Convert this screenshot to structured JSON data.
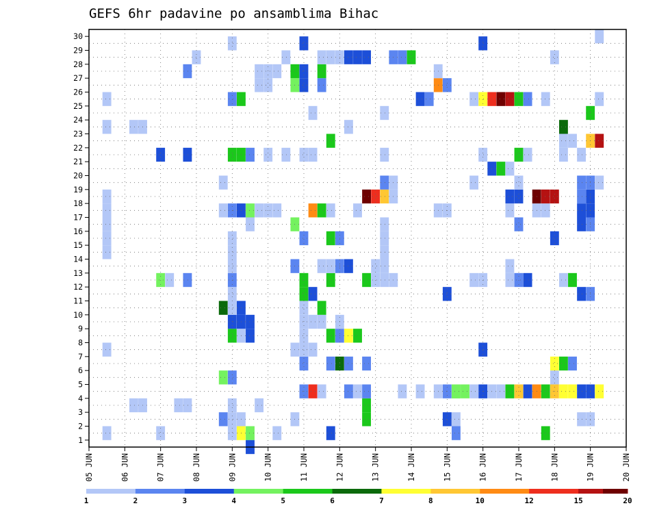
{
  "chart_data": {
    "type": "heatmap",
    "title": "GEFS 6hr padavine po ansamblima Bihac",
    "x_tick_labels": [
      "05 JUN",
      "06 JUN",
      "07 JUN",
      "08 JUN",
      "09 JUN",
      "10 JUN",
      "11 JUN",
      "12 JUN",
      "13 JUN",
      "14 JUN",
      "15 JUN",
      "16 JUN",
      "17 JUN",
      "18 JUN",
      "19 JUN",
      "20 JUN"
    ],
    "y_tick_labels": [
      "1",
      "2",
      "3",
      "4",
      "5",
      "6",
      "7",
      "8",
      "9",
      "10",
      "11",
      "12",
      "13",
      "14",
      "15",
      "16",
      "17",
      "18",
      "19",
      "20",
      "21",
      "22",
      "23",
      "24",
      "25",
      "26",
      "27",
      "28",
      "29",
      "30"
    ],
    "time_steps_per_day": 4,
    "num_time_steps": 61,
    "members": 30,
    "xlim": [
      0,
      60
    ],
    "ylim": [
      1,
      30
    ],
    "grid": "dotted",
    "colorbar": {
      "labels": [
        "1",
        "2",
        "3",
        "4",
        "5",
        "6",
        "7",
        "8",
        "10",
        "12",
        "15",
        "20"
      ],
      "colors": [
        "#b3c7f7",
        "#5b85f0",
        "#1d4fd8",
        "#74f25f",
        "#1bc81b",
        "#0b6a0b",
        "#ffff33",
        "#ffc733",
        "#ff8b14",
        "#ee2e1e",
        "#b51212",
        "#6e0000"
      ]
    },
    "cells": [
      {
        "t": 2,
        "m": 1,
        "c": 0
      },
      {
        "t": 2,
        "m": 7,
        "c": 0
      },
      {
        "t": 2,
        "m": 14,
        "c": 0
      },
      {
        "t": 2,
        "m": 15,
        "c": 0
      },
      {
        "t": 2,
        "m": 16,
        "c": 0
      },
      {
        "t": 2,
        "m": 17,
        "c": 0
      },
      {
        "t": 2,
        "m": 18,
        "c": 0
      },
      {
        "t": 2,
        "m": 23,
        "c": 0
      },
      {
        "t": 2,
        "m": 25,
        "c": 0
      },
      {
        "t": 5,
        "m": 3,
        "c": 0
      },
      {
        "t": 6,
        "m": 3,
        "c": 0
      },
      {
        "t": 5,
        "m": 23,
        "c": 0
      },
      {
        "t": 6,
        "m": 23,
        "c": 0
      },
      {
        "t": 8,
        "m": 1,
        "c": 0
      },
      {
        "t": 8,
        "m": 12,
        "c": 3
      },
      {
        "t": 9,
        "m": 12,
        "c": 0
      },
      {
        "t": 8,
        "m": 21,
        "c": 2
      },
      {
        "t": 10,
        "m": 3,
        "c": 0
      },
      {
        "t": 11,
        "m": 3,
        "c": 0
      },
      {
        "t": 11,
        "m": 12,
        "c": 1
      },
      {
        "t": 11,
        "m": 21,
        "c": 2
      },
      {
        "t": 11,
        "m": 27,
        "c": 1
      },
      {
        "t": 12,
        "m": 28,
        "c": 0
      },
      {
        "t": 15,
        "m": 10,
        "c": 5
      },
      {
        "t": 15,
        "m": 5,
        "c": 3
      },
      {
        "t": 15,
        "m": 17,
        "c": 0
      },
      {
        "t": 15,
        "m": 19,
        "c": 0
      },
      {
        "t": 15,
        "m": 2,
        "c": 1
      },
      {
        "t": 16,
        "m": 1,
        "c": 0
      },
      {
        "t": 16,
        "m": 2,
        "c": 0
      },
      {
        "t": 16,
        "m": 3,
        "c": 0
      },
      {
        "t": 16,
        "m": 5,
        "c": 1
      },
      {
        "t": 16,
        "m": 8,
        "c": 4
      },
      {
        "t": 16,
        "m": 9,
        "c": 2
      },
      {
        "t": 16,
        "m": 10,
        "c": 0
      },
      {
        "t": 16,
        "m": 11,
        "c": 0
      },
      {
        "t": 16,
        "m": 12,
        "c": 1
      },
      {
        "t": 16,
        "m": 13,
        "c": 0
      },
      {
        "t": 16,
        "m": 14,
        "c": 0
      },
      {
        "t": 16,
        "m": 15,
        "c": 0
      },
      {
        "t": 16,
        "m": 17,
        "c": 1
      },
      {
        "t": 16,
        "m": 21,
        "c": 4
      },
      {
        "t": 16,
        "m": 25,
        "c": 1
      },
      {
        "t": 16,
        "m": 29,
        "c": 0
      },
      {
        "t": 17,
        "m": 1,
        "c": 6
      },
      {
        "t": 17,
        "m": 2,
        "c": 0
      },
      {
        "t": 17,
        "m": 8,
        "c": 0
      },
      {
        "t": 17,
        "m": 9,
        "c": 2
      },
      {
        "t": 17,
        "m": 10,
        "c": 2
      },
      {
        "t": 17,
        "m": 17,
        "c": 2
      },
      {
        "t": 17,
        "m": 21,
        "c": 4
      },
      {
        "t": 17,
        "m": 25,
        "c": 4
      },
      {
        "t": 18,
        "m": 1,
        "c": 3
      },
      {
        "t": 18,
        "m": 8,
        "c": 2
      },
      {
        "t": 18,
        "m": 9,
        "c": 2
      },
      {
        "t": 18,
        "m": 0,
        "c": 2
      },
      {
        "t": 18,
        "m": 16,
        "c": 0
      },
      {
        "t": 18,
        "m": 17,
        "c": 3
      },
      {
        "t": 18,
        "m": 21,
        "c": 1
      },
      {
        "t": 19,
        "m": 3,
        "c": 0
      },
      {
        "t": 19,
        "m": 17,
        "c": 0
      },
      {
        "t": 19,
        "m": 26,
        "c": 0
      },
      {
        "t": 19,
        "m": 27,
        "c": 0
      },
      {
        "t": 20,
        "m": 17,
        "c": 0
      },
      {
        "t": 20,
        "m": 21,
        "c": 0
      },
      {
        "t": 20,
        "m": 26,
        "c": 0
      },
      {
        "t": 20,
        "m": 27,
        "c": 0
      },
      {
        "t": 21,
        "m": 1,
        "c": 0
      },
      {
        "t": 21,
        "m": 17,
        "c": 0
      },
      {
        "t": 21,
        "m": 27,
        "c": 0
      },
      {
        "t": 22,
        "m": 21,
        "c": 0
      },
      {
        "t": 22,
        "m": 28,
        "c": 0
      },
      {
        "t": 23,
        "m": 2,
        "c": 0
      },
      {
        "t": 23,
        "m": 7,
        "c": 0
      },
      {
        "t": 23,
        "m": 13,
        "c": 1
      },
      {
        "t": 23,
        "m": 16,
        "c": 3
      },
      {
        "t": 23,
        "m": 26,
        "c": 3
      },
      {
        "t": 23,
        "m": 27,
        "c": 4
      },
      {
        "t": 24,
        "m": 4,
        "c": 1
      },
      {
        "t": 24,
        "m": 6,
        "c": 1
      },
      {
        "t": 24,
        "m": 7,
        "c": 0
      },
      {
        "t": 24,
        "m": 8,
        "c": 0
      },
      {
        "t": 24,
        "m": 9,
        "c": 0
      },
      {
        "t": 24,
        "m": 10,
        "c": 0
      },
      {
        "t": 24,
        "m": 11,
        "c": 4
      },
      {
        "t": 24,
        "m": 12,
        "c": 4
      },
      {
        "t": 24,
        "m": 15,
        "c": 1
      },
      {
        "t": 24,
        "m": 21,
        "c": 0
      },
      {
        "t": 24,
        "m": 26,
        "c": 2
      },
      {
        "t": 24,
        "m": 27,
        "c": 2
      },
      {
        "t": 24,
        "m": 29,
        "c": 2
      },
      {
        "t": 25,
        "m": 4,
        "c": 9
      },
      {
        "t": 25,
        "m": 7,
        "c": 0
      },
      {
        "t": 25,
        "m": 9,
        "c": 0
      },
      {
        "t": 25,
        "m": 11,
        "c": 2
      },
      {
        "t": 25,
        "m": 17,
        "c": 8
      },
      {
        "t": 25,
        "m": 21,
        "c": 0
      },
      {
        "t": 25,
        "m": 24,
        "c": 0
      },
      {
        "t": 26,
        "m": 4,
        "c": 0
      },
      {
        "t": 26,
        "m": 9,
        "c": 0
      },
      {
        "t": 26,
        "m": 10,
        "c": 4
      },
      {
        "t": 26,
        "m": 13,
        "c": 0
      },
      {
        "t": 26,
        "m": 17,
        "c": 4
      },
      {
        "t": 26,
        "m": 26,
        "c": 1
      },
      {
        "t": 26,
        "m": 27,
        "c": 4
      },
      {
        "t": 26,
        "m": 28,
        "c": 0
      },
      {
        "t": 27,
        "m": 1,
        "c": 2
      },
      {
        "t": 27,
        "m": 6,
        "c": 1
      },
      {
        "t": 27,
        "m": 8,
        "c": 4
      },
      {
        "t": 27,
        "m": 12,
        "c": 4
      },
      {
        "t": 27,
        "m": 13,
        "c": 0
      },
      {
        "t": 27,
        "m": 15,
        "c": 4
      },
      {
        "t": 27,
        "m": 17,
        "c": 0
      },
      {
        "t": 27,
        "m": 22,
        "c": 4
      },
      {
        "t": 27,
        "m": 28,
        "c": 0
      },
      {
        "t": 28,
        "m": 6,
        "c": 5
      },
      {
        "t": 28,
        "m": 8,
        "c": 1
      },
      {
        "t": 28,
        "m": 9,
        "c": 0
      },
      {
        "t": 28,
        "m": 13,
        "c": 1
      },
      {
        "t": 28,
        "m": 15,
        "c": 1
      },
      {
        "t": 28,
        "m": 28,
        "c": 0
      },
      {
        "t": 29,
        "m": 4,
        "c": 1
      },
      {
        "t": 29,
        "m": 6,
        "c": 1
      },
      {
        "t": 29,
        "m": 8,
        "c": 6
      },
      {
        "t": 29,
        "m": 13,
        "c": 2
      },
      {
        "t": 29,
        "m": 23,
        "c": 0
      },
      {
        "t": 29,
        "m": 28,
        "c": 2
      },
      {
        "t": 30,
        "m": 4,
        "c": 0
      },
      {
        "t": 30,
        "m": 8,
        "c": 4
      },
      {
        "t": 30,
        "m": 17,
        "c": 0
      },
      {
        "t": 30,
        "m": 28,
        "c": 2
      },
      {
        "t": 31,
        "m": 2,
        "c": 4
      },
      {
        "t": 31,
        "m": 3,
        "c": 4
      },
      {
        "t": 31,
        "m": 4,
        "c": 1
      },
      {
        "t": 31,
        "m": 6,
        "c": 1
      },
      {
        "t": 31,
        "m": 12,
        "c": 4
      },
      {
        "t": 31,
        "m": 18,
        "c": 11
      },
      {
        "t": 31,
        "m": 28,
        "c": 2
      },
      {
        "t": 32,
        "m": 12,
        "c": 0
      },
      {
        "t": 32,
        "m": 13,
        "c": 0
      },
      {
        "t": 32,
        "m": 18,
        "c": 9
      },
      {
        "t": 33,
        "m": 12,
        "c": 0
      },
      {
        "t": 33,
        "m": 13,
        "c": 0
      },
      {
        "t": 33,
        "m": 14,
        "c": 0
      },
      {
        "t": 33,
        "m": 15,
        "c": 0
      },
      {
        "t": 33,
        "m": 16,
        "c": 0
      },
      {
        "t": 33,
        "m": 18,
        "c": 7
      },
      {
        "t": 33,
        "m": 21,
        "c": 0
      },
      {
        "t": 33,
        "m": 19,
        "c": 1
      },
      {
        "t": 33,
        "m": 24,
        "c": 0
      },
      {
        "t": 34,
        "m": 12,
        "c": 0
      },
      {
        "t": 34,
        "m": 18,
        "c": 0
      },
      {
        "t": 34,
        "m": 19,
        "c": 0
      },
      {
        "t": 34,
        "m": 28,
        "c": 1
      },
      {
        "t": 35,
        "m": 4,
        "c": 0
      },
      {
        "t": 35,
        "m": 28,
        "c": 1
      },
      {
        "t": 36,
        "m": 28,
        "c": 4
      },
      {
        "t": 37,
        "m": 4,
        "c": 0
      },
      {
        "t": 37,
        "m": 25,
        "c": 2
      },
      {
        "t": 38,
        "m": 25,
        "c": 1
      },
      {
        "t": 39,
        "m": 4,
        "c": 0
      },
      {
        "t": 39,
        "m": 17,
        "c": 0
      },
      {
        "t": 39,
        "m": 26,
        "c": 8
      },
      {
        "t": 39,
        "m": 27,
        "c": 0
      },
      {
        "t": 40,
        "m": 4,
        "c": 1
      },
      {
        "t": 40,
        "m": 2,
        "c": 2
      },
      {
        "t": 40,
        "m": 11,
        "c": 2
      },
      {
        "t": 40,
        "m": 17,
        "c": 0
      },
      {
        "t": 40,
        "m": 26,
        "c": 1
      },
      {
        "t": 41,
        "m": 4,
        "c": 3
      },
      {
        "t": 41,
        "m": 1,
        "c": 1
      },
      {
        "t": 41,
        "m": 2,
        "c": 0
      },
      {
        "t": 41,
        "m": 4,
        "c": 3
      },
      {
        "t": 42,
        "m": 4,
        "c": 3
      },
      {
        "t": 43,
        "m": 4,
        "c": 0
      },
      {
        "t": 43,
        "m": 12,
        "c": 0
      },
      {
        "t": 43,
        "m": 19,
        "c": 0
      },
      {
        "t": 43,
        "m": 25,
        "c": 0
      },
      {
        "t": 44,
        "m": 4,
        "c": 2
      },
      {
        "t": 44,
        "m": 12,
        "c": 0
      },
      {
        "t": 44,
        "m": 21,
        "c": 0
      },
      {
        "t": 44,
        "m": 7,
        "c": 2
      },
      {
        "t": 44,
        "m": 25,
        "c": 6
      },
      {
        "t": 44,
        "m": 29,
        "c": 2
      },
      {
        "t": 45,
        "m": 4,
        "c": 0
      },
      {
        "t": 45,
        "m": 20,
        "c": 2
      },
      {
        "t": 45,
        "m": 25,
        "c": 9
      },
      {
        "t": 46,
        "m": 4,
        "c": 0
      },
      {
        "t": 46,
        "m": 20,
        "c": 4
      },
      {
        "t": 46,
        "m": 25,
        "c": 11
      },
      {
        "t": 47,
        "m": 4,
        "c": 4
      },
      {
        "t": 47,
        "m": 17,
        "c": 0
      },
      {
        "t": 47,
        "m": 18,
        "c": 2
      },
      {
        "t": 47,
        "m": 20,
        "c": 0
      },
      {
        "t": 47,
        "m": 25,
        "c": 10
      },
      {
        "t": 47,
        "m": 12,
        "c": 0
      },
      {
        "t": 47,
        "m": 13,
        "c": 0
      },
      {
        "t": 48,
        "m": 4,
        "c": 7
      },
      {
        "t": 48,
        "m": 12,
        "c": 1
      },
      {
        "t": 48,
        "m": 18,
        "c": 2
      },
      {
        "t": 48,
        "m": 19,
        "c": 0
      },
      {
        "t": 48,
        "m": 21,
        "c": 4
      },
      {
        "t": 48,
        "m": 25,
        "c": 4
      },
      {
        "t": 48,
        "m": 16,
        "c": 1
      },
      {
        "t": 49,
        "m": 4,
        "c": 2
      },
      {
        "t": 49,
        "m": 12,
        "c": 2
      },
      {
        "t": 49,
        "m": 21,
        "c": 0
      },
      {
        "t": 49,
        "m": 25,
        "c": 1
      },
      {
        "t": 50,
        "m": 4,
        "c": 8
      },
      {
        "t": 50,
        "m": 17,
        "c": 0
      },
      {
        "t": 50,
        "m": 18,
        "c": 11
      },
      {
        "t": 51,
        "m": 4,
        "c": 4
      },
      {
        "t": 51,
        "m": 1,
        "c": 4
      },
      {
        "t": 51,
        "m": 17,
        "c": 0
      },
      {
        "t": 51,
        "m": 18,
        "c": 10
      },
      {
        "t": 51,
        "m": 25,
        "c": 0
      },
      {
        "t": 52,
        "m": 4,
        "c": 7
      },
      {
        "t": 52,
        "m": 5,
        "c": 0
      },
      {
        "t": 52,
        "m": 6,
        "c": 6
      },
      {
        "t": 52,
        "m": 15,
        "c": 2
      },
      {
        "t": 52,
        "m": 18,
        "c": 10
      },
      {
        "t": 52,
        "m": 28,
        "c": 0
      },
      {
        "t": 53,
        "m": 4,
        "c": 6
      },
      {
        "t": 53,
        "m": 6,
        "c": 4
      },
      {
        "t": 53,
        "m": 12,
        "c": 0
      },
      {
        "t": 53,
        "m": 21,
        "c": 0
      },
      {
        "t": 53,
        "m": 23,
        "c": 5
      },
      {
        "t": 53,
        "m": 22,
        "c": 0
      },
      {
        "t": 54,
        "m": 4,
        "c": 6
      },
      {
        "t": 54,
        "m": 6,
        "c": 1
      },
      {
        "t": 54,
        "m": 12,
        "c": 4
      },
      {
        "t": 54,
        "m": 22,
        "c": 0
      },
      {
        "t": 55,
        "m": 4,
        "c": 2
      },
      {
        "t": 55,
        "m": 2,
        "c": 0
      },
      {
        "t": 55,
        "m": 11,
        "c": 2
      },
      {
        "t": 55,
        "m": 16,
        "c": 2
      },
      {
        "t": 55,
        "m": 17,
        "c": 2
      },
      {
        "t": 55,
        "m": 18,
        "c": 1
      },
      {
        "t": 55,
        "m": 19,
        "c": 1
      },
      {
        "t": 55,
        "m": 21,
        "c": 0
      },
      {
        "t": 56,
        "m": 4,
        "c": 2
      },
      {
        "t": 56,
        "m": 2,
        "c": 0
      },
      {
        "t": 56,
        "m": 11,
        "c": 1
      },
      {
        "t": 56,
        "m": 16,
        "c": 1
      },
      {
        "t": 56,
        "m": 17,
        "c": 2
      },
      {
        "t": 56,
        "m": 18,
        "c": 2
      },
      {
        "t": 56,
        "m": 19,
        "c": 1
      },
      {
        "t": 56,
        "m": 22,
        "c": 7
      },
      {
        "t": 56,
        "m": 24,
        "c": 4
      },
      {
        "t": 57,
        "m": 4,
        "c": 6
      },
      {
        "t": 57,
        "m": 22,
        "c": 10
      },
      {
        "t": 57,
        "m": 30,
        "c": 0
      },
      {
        "t": 57,
        "m": 25,
        "c": 0
      },
      {
        "t": 57,
        "m": 19,
        "c": 0
      }
    ]
  }
}
